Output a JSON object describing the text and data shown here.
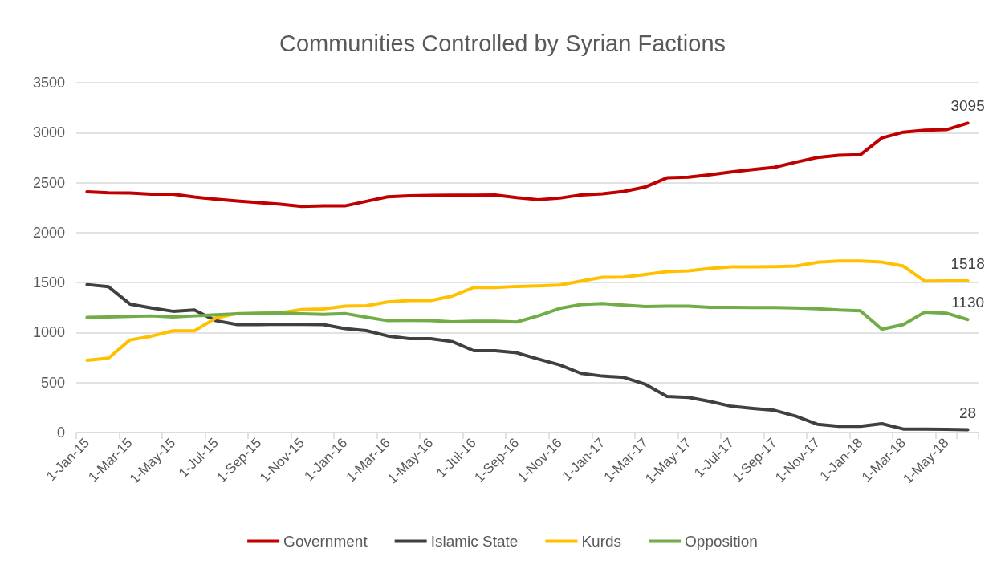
{
  "chart_data": {
    "type": "line",
    "title": "Communities Controlled by Syrian Factions",
    "categories": [
      "1-Jan-15",
      null,
      "1-Mar-15",
      null,
      "1-May-15",
      null,
      "1-Jul-15",
      null,
      "1-Sep-15",
      null,
      "1-Nov-15",
      null,
      "1-Jan-16",
      null,
      "1-Mar-16",
      null,
      "1-May-16",
      null,
      "1-Jul-16",
      null,
      "1-Sep-16",
      null,
      "1-Nov-16",
      null,
      "1-Jan-17",
      null,
      "1-Mar-17",
      null,
      "1-May-17",
      null,
      "1-Jul-17",
      null,
      "1-Sep-17",
      null,
      "1-Nov-17",
      null,
      "1-Jan-18",
      null,
      "1-Mar-18",
      null,
      "1-May-18",
      null
    ],
    "series": [
      {
        "name": "Government",
        "color": "#c00000",
        "values": [
          2409,
          2399,
          2396,
          2385,
          2385,
          2356,
          2334,
          2316,
          2300,
          2283,
          2262,
          2267,
          2267,
          2313,
          2358,
          2369,
          2372,
          2374,
          2374,
          2377,
          2350,
          2329,
          2345,
          2377,
          2388,
          2412,
          2457,
          2548,
          2554,
          2578,
          2607,
          2631,
          2653,
          2704,
          2752,
          2773,
          2779,
          2947,
          3005,
          3025,
          3030,
          3095
        ],
        "value_labels": [
          null,
          null,
          null,
          null,
          null,
          null,
          null,
          null,
          null,
          null,
          null,
          null,
          null,
          null,
          null,
          null,
          null,
          null,
          null,
          null,
          null,
          null,
          null,
          null,
          null,
          null,
          null,
          null,
          null,
          null,
          null,
          null,
          null,
          null,
          null,
          null,
          null,
          null,
          null,
          null,
          null,
          "3095"
        ]
      },
      {
        "name": "Islamic State",
        "color": "#404040",
        "values": [
          1480,
          1459,
          1285,
          1247,
          1213,
          1226,
          1119,
          1079,
          1079,
          1084,
          1082,
          1079,
          1039,
          1020,
          966,
          940,
          940,
          910,
          819,
          819,
          798,
          736,
          677,
          592,
          565,
          551,
          482,
          361,
          351,
          311,
          262,
          241,
          222,
          163,
          83,
          62,
          62,
          88,
          35,
          35,
          33,
          28
        ],
        "value_labels": [
          null,
          null,
          null,
          null,
          null,
          null,
          null,
          null,
          null,
          null,
          null,
          null,
          null,
          null,
          null,
          null,
          null,
          null,
          null,
          null,
          null,
          null,
          null,
          null,
          null,
          null,
          null,
          null,
          null,
          null,
          null,
          null,
          null,
          null,
          null,
          null,
          null,
          null,
          null,
          null,
          null,
          "28"
        ]
      },
      {
        "name": "Kurds",
        "color": "#ffc000",
        "values": [
          723,
          744,
          926,
          964,
          1017,
          1017,
          1146,
          1191,
          1191,
          1199,
          1231,
          1237,
          1264,
          1269,
          1306,
          1320,
          1320,
          1365,
          1451,
          1451,
          1462,
          1467,
          1475,
          1515,
          1553,
          1555,
          1582,
          1609,
          1617,
          1641,
          1657,
          1657,
          1660,
          1665,
          1703,
          1716,
          1716,
          1705,
          1665,
          1515,
          1518,
          1518
        ],
        "value_labels": [
          null,
          null,
          null,
          null,
          null,
          null,
          null,
          null,
          null,
          null,
          null,
          null,
          null,
          null,
          null,
          null,
          null,
          null,
          null,
          null,
          null,
          null,
          null,
          null,
          null,
          null,
          null,
          null,
          null,
          null,
          null,
          null,
          null,
          null,
          null,
          null,
          null,
          null,
          null,
          null,
          null,
          "1518"
        ]
      },
      {
        "name": "Opposition",
        "color": "#70ad47",
        "values": [
          1151,
          1156,
          1162,
          1167,
          1156,
          1167,
          1178,
          1189,
          1194,
          1197,
          1189,
          1183,
          1191,
          1154,
          1119,
          1122,
          1119,
          1108,
          1114,
          1114,
          1106,
          1167,
          1242,
          1280,
          1290,
          1274,
          1261,
          1264,
          1264,
          1253,
          1253,
          1250,
          1250,
          1247,
          1239,
          1226,
          1218,
          1033,
          1080,
          1205,
          1195,
          1130
        ],
        "value_labels": [
          null,
          null,
          null,
          null,
          null,
          null,
          null,
          null,
          null,
          null,
          null,
          null,
          null,
          null,
          null,
          null,
          null,
          null,
          null,
          null,
          null,
          null,
          null,
          null,
          null,
          null,
          null,
          null,
          null,
          null,
          null,
          null,
          null,
          null,
          null,
          null,
          null,
          null,
          null,
          null,
          null,
          "1130"
        ]
      }
    ],
    "ylim": [
      0,
      3500
    ],
    "yticks": [
      0,
      500,
      1000,
      1500,
      2000,
      2500,
      3000,
      3500
    ],
    "grid": "y",
    "legend": "bottom",
    "marker": "none",
    "line_style": "solid"
  }
}
